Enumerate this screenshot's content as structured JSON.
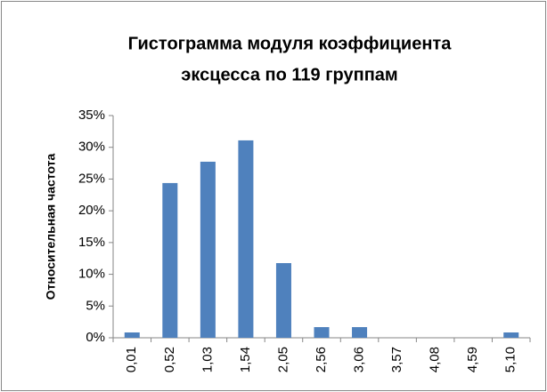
{
  "chart_data": {
    "type": "bar",
    "title": [
      "Гистограмма модуля коэффициента",
      "эксцесса по  119 группам"
    ],
    "y_label": "Относительная частота",
    "categories": [
      "0,01",
      "0,52",
      "1,03",
      "1,54",
      "2,05",
      "2,56",
      "3,06",
      "3,57",
      "4,08",
      "4,59",
      "5,10"
    ],
    "values": [
      0.84,
      24.37,
      27.73,
      31.09,
      11.76,
      1.68,
      1.68,
      0,
      0,
      0,
      0.84
    ],
    "color": "#4f81bd",
    "ylim": [
      0,
      35
    ],
    "yticks": [
      {
        "value": 0,
        "label": "0%"
      },
      {
        "value": 5,
        "label": "5%"
      },
      {
        "value": 10,
        "label": "10%"
      },
      {
        "value": 15,
        "label": "15%"
      },
      {
        "value": 20,
        "label": "20%"
      },
      {
        "value": 25,
        "label": "25%"
      },
      {
        "value": 30,
        "label": "30%"
      },
      {
        "value": 35,
        "label": "35%"
      }
    ],
    "grid": false
  }
}
